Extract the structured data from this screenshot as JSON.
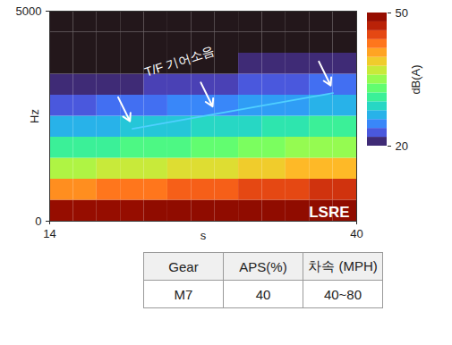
{
  "chart_data": {
    "type": "heatmap",
    "x_label": "s",
    "y_label": "Hz",
    "xlim": [
      14,
      40
    ],
    "xticks": [
      14,
      40
    ],
    "ylim": [
      0,
      5000
    ],
    "yticks": [
      0,
      5000
    ],
    "x_bins": [
      14,
      16,
      18,
      20,
      22,
      24,
      26,
      28,
      30,
      32,
      34,
      36,
      38,
      40
    ],
    "y_bins": [
      0,
      500,
      1000,
      1500,
      2000,
      2500,
      3000,
      3500,
      4000,
      4500,
      5000
    ],
    "values": [
      [
        49,
        49,
        49,
        49,
        50,
        50,
        50,
        50,
        50,
        50,
        50,
        50,
        50
      ],
      [
        42,
        42,
        43,
        43,
        43,
        44,
        44,
        44,
        45,
        45,
        45,
        46,
        46
      ],
      [
        36,
        36,
        37,
        37,
        37,
        38,
        38,
        38,
        39,
        39,
        40,
        40,
        40
      ],
      [
        31,
        31,
        31,
        32,
        32,
        32,
        33,
        33,
        34,
        34,
        35,
        35,
        35
      ],
      [
        27,
        27,
        27,
        28,
        28,
        28,
        29,
        29,
        29,
        30,
        30,
        31,
        31
      ],
      [
        23,
        23,
        24,
        24,
        24,
        25,
        25,
        25,
        26,
        26,
        26,
        27,
        27
      ],
      [
        21,
        21,
        21,
        21,
        22,
        22,
        22,
        22,
        23,
        23,
        23,
        24,
        24
      ],
      [
        19,
        19,
        19,
        20,
        20,
        20,
        20,
        20,
        21,
        21,
        21,
        21,
        21
      ],
      [
        18,
        18,
        18,
        18,
        18,
        19,
        19,
        19,
        19,
        19,
        19,
        19,
        20
      ],
      [
        17,
        17,
        17,
        17,
        17,
        17,
        18,
        18,
        18,
        18,
        18,
        18,
        18
      ]
    ],
    "colorbar": {
      "label": "dB(A)",
      "range": [
        20,
        50
      ],
      "ticks": [
        20,
        50
      ]
    },
    "annotations": [
      {
        "text": "T/F 기어소음",
        "x": [
          21,
          28,
          38
        ],
        "y": [
          2200,
          2550,
          3050
        ],
        "color": "#4fd0ff"
      }
    ],
    "corner_label": "LSRE"
  },
  "table": {
    "header": [
      "Gear",
      "APS(%)",
      "차속 (MPH)"
    ],
    "rows": [
      [
        "M7",
        "40",
        "40~80"
      ]
    ]
  }
}
